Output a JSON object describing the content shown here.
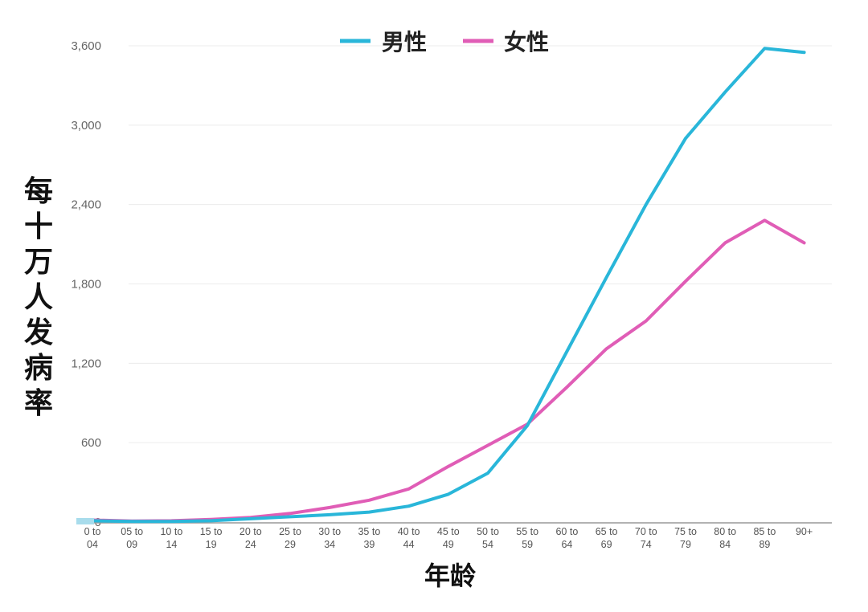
{
  "chart_data": {
    "type": "line",
    "title": "",
    "xlabel": "年龄",
    "ylabel": "每十万人发病率",
    "ylim": [
      0,
      3600
    ],
    "yticks": [
      0,
      600,
      1200,
      1800,
      2400,
      3000,
      3600
    ],
    "ytick_labels": [
      "0",
      "600",
      "1,200",
      "1,800",
      "2,400",
      "3,000",
      "3,600"
    ],
    "grid": true,
    "legend_position": "top-center",
    "categories": [
      "0 to 04",
      "05 to 09",
      "10 to 14",
      "15 to 19",
      "20 to 24",
      "25 to 29",
      "30 to 34",
      "35 to 39",
      "40 to 44",
      "45 to 49",
      "50 to 54",
      "55 to 59",
      "60 to 64",
      "65 to 69",
      "70 to 74",
      "75 to 79",
      "80 to 84",
      "85 to 89",
      "90+"
    ],
    "category_lines": [
      [
        "0 to",
        "04"
      ],
      [
        "05 to",
        "09"
      ],
      [
        "10 to",
        "14"
      ],
      [
        "15 to",
        "19"
      ],
      [
        "20 to",
        "24"
      ],
      [
        "25 to",
        "29"
      ],
      [
        "30 to",
        "34"
      ],
      [
        "35 to",
        "39"
      ],
      [
        "40 to",
        "44"
      ],
      [
        "45 to",
        "49"
      ],
      [
        "50 to",
        "54"
      ],
      [
        "55 to",
        "59"
      ],
      [
        "60 to",
        "64"
      ],
      [
        "65 to",
        "69"
      ],
      [
        "70 to",
        "74"
      ],
      [
        "75 to",
        "79"
      ],
      [
        "80 to",
        "84"
      ],
      [
        "85 to",
        "89"
      ],
      [
        "90+",
        ""
      ]
    ],
    "series": [
      {
        "name": "男性",
        "color": "#29b6d9",
        "values": [
          10,
          5,
          5,
          10,
          25,
          40,
          55,
          75,
          120,
          210,
          370,
          730,
          1290,
          1850,
          2400,
          2900,
          3250,
          3580,
          3550
        ]
      },
      {
        "name": "女性",
        "color": "#e05db6",
        "values": [
          15,
          8,
          10,
          20,
          35,
          65,
          110,
          165,
          250,
          420,
          580,
          740,
          1020,
          1310,
          1520,
          1820,
          2110,
          2280,
          2110
        ]
      }
    ]
  },
  "legend": {
    "items": [
      {
        "label": "男性",
        "color": "#29b6d9"
      },
      {
        "label": "女性",
        "color": "#e05db6"
      }
    ]
  },
  "axes": {
    "ylabel_chars": [
      "每",
      "十",
      "万",
      "人",
      "发",
      "病",
      "率"
    ],
    "xlabel": "年龄"
  },
  "colors": {
    "grid": "#ececec",
    "axis": "#999999"
  }
}
